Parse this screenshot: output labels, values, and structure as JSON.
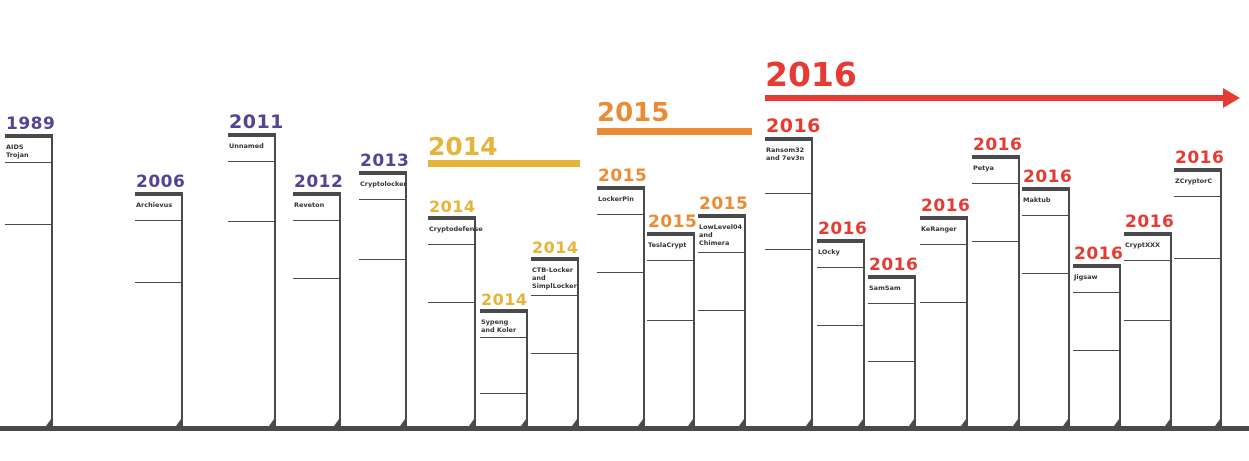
{
  "colors": {
    "purple": "#514596",
    "yellow": "#E7B43A",
    "orange": "#EB8C34",
    "red": "#E63B33",
    "line": "#4a4a4a"
  },
  "eras": [
    {
      "id": "era-2014",
      "label": "2014",
      "color": "#E7B43A"
    },
    {
      "id": "era-2015",
      "label": "2015",
      "color": "#EB8C34"
    },
    {
      "id": "era-2016",
      "label": "2016",
      "color": "#E63B33"
    }
  ],
  "entries": [
    {
      "year": "1989",
      "name": "AIDS Trojan",
      "color": "#514596"
    },
    {
      "year": "2006",
      "name": "Archievus",
      "color": "#514596"
    },
    {
      "year": "2011",
      "name": "Unnamed",
      "color": "#514596"
    },
    {
      "year": "2012",
      "name": "Reveton",
      "color": "#514596"
    },
    {
      "year": "2013",
      "name": "Cryptolocker",
      "color": "#514596"
    },
    {
      "year": "2014",
      "name": "Cryptodefense",
      "color": "#E7B43A"
    },
    {
      "year": "2014",
      "name": "Sypeng and Koler",
      "color": "#E7B43A"
    },
    {
      "year": "2014",
      "name": "CTB-Locker and SimplLocker",
      "color": "#E7B43A"
    },
    {
      "year": "2015",
      "name": "LockerPin",
      "color": "#EB8C34"
    },
    {
      "year": "2015",
      "name": "TeslaCrypt",
      "color": "#EB8C34"
    },
    {
      "year": "2015",
      "name": "LowLevel04 and Chimera",
      "color": "#EB8C34"
    },
    {
      "year": "2016",
      "name": "Ransom32 and 7ev3n",
      "color": "#E63B33"
    },
    {
      "year": "2016",
      "name": "LOcky",
      "color": "#E63B33"
    },
    {
      "year": "2016",
      "name": "SamSam",
      "color": "#E63B33"
    },
    {
      "year": "2016",
      "name": "KeRanger",
      "color": "#E63B33"
    },
    {
      "year": "2016",
      "name": "Petya",
      "color": "#E63B33"
    },
    {
      "year": "2016",
      "name": "Maktub",
      "color": "#E63B33"
    },
    {
      "year": "2016",
      "name": "Jigsaw",
      "color": "#E63B33"
    },
    {
      "year": "2016",
      "name": "CryptXXX",
      "color": "#E63B33"
    },
    {
      "year": "2016",
      "name": "ZCryptorC",
      "color": "#E63B33"
    }
  ]
}
